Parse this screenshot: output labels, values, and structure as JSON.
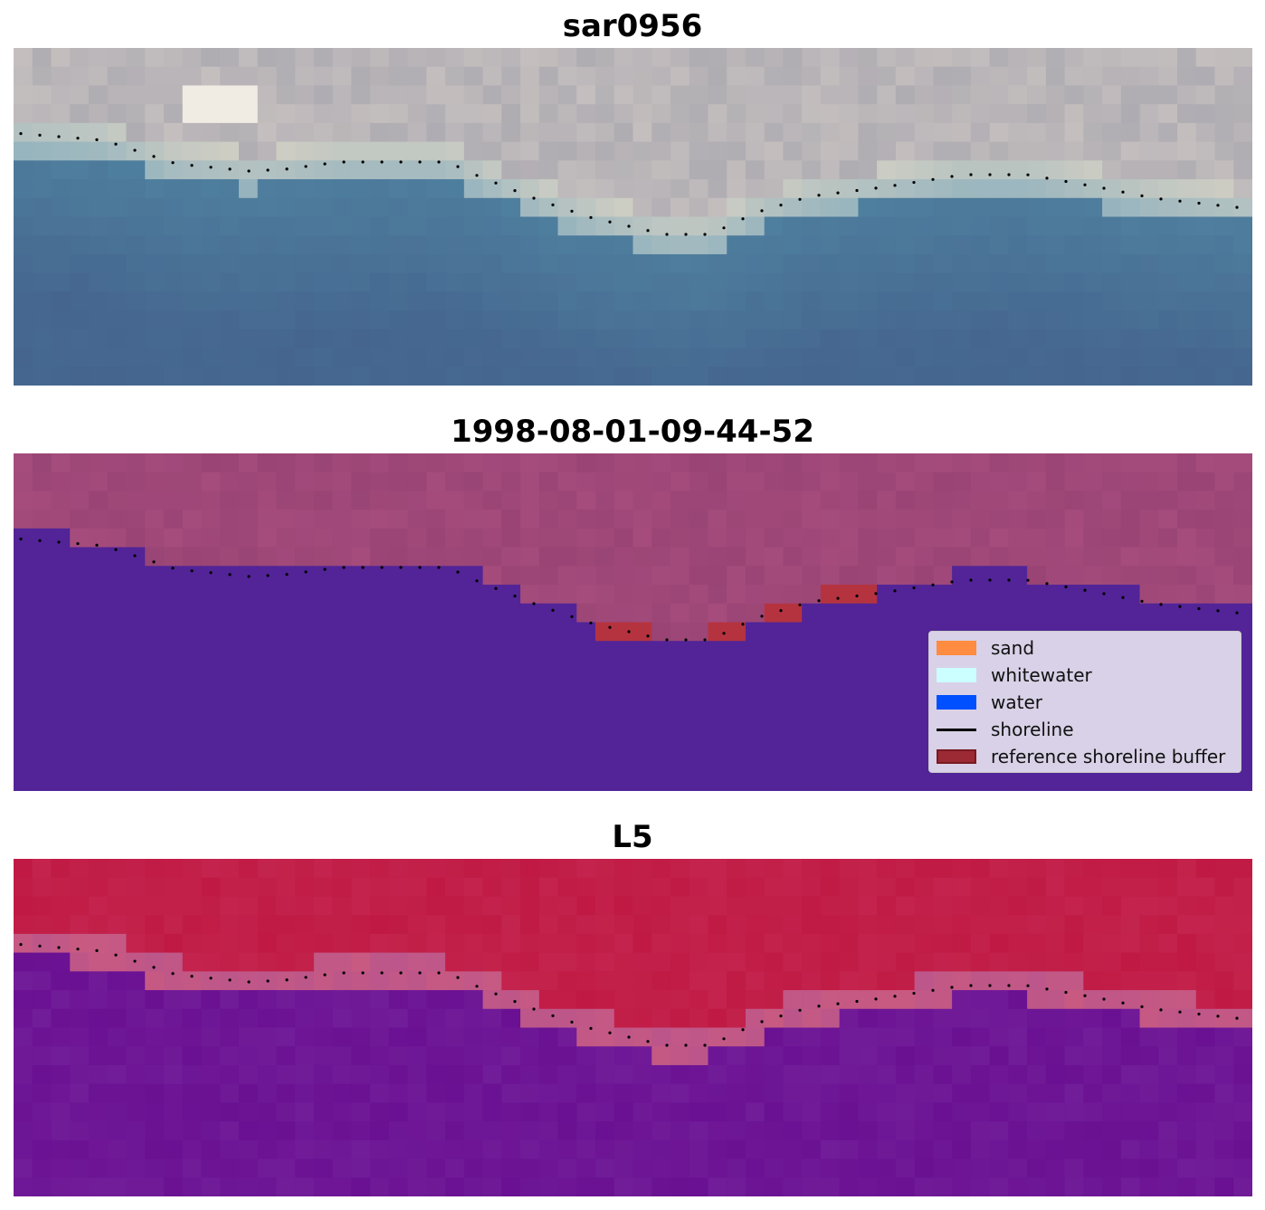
{
  "panels": [
    {
      "title": "sar0956",
      "kind": "rgb"
    },
    {
      "title": "1998-08-01-09-44-52",
      "kind": "classification"
    },
    {
      "title": "L5",
      "kind": "index"
    }
  ],
  "legend": {
    "items": [
      {
        "label": "sand",
        "color": "#ff8c40",
        "type": "patch"
      },
      {
        "label": "whitewater",
        "color": "#ccffff",
        "type": "patch"
      },
      {
        "label": "water",
        "color": "#0050ff",
        "type": "patch"
      },
      {
        "label": "shoreline",
        "color": "#000000",
        "type": "line"
      },
      {
        "label": "reference shoreline buffer",
        "color": "#9b2a35",
        "type": "patch"
      }
    ]
  },
  "colors": {
    "shoreline_dots": "#000000",
    "water_class": "#522497",
    "buffer_class": "#b5333f",
    "land_class": "#a54c7c",
    "l5_high": "#c01a44",
    "l5_low": "#6a1092"
  }
}
